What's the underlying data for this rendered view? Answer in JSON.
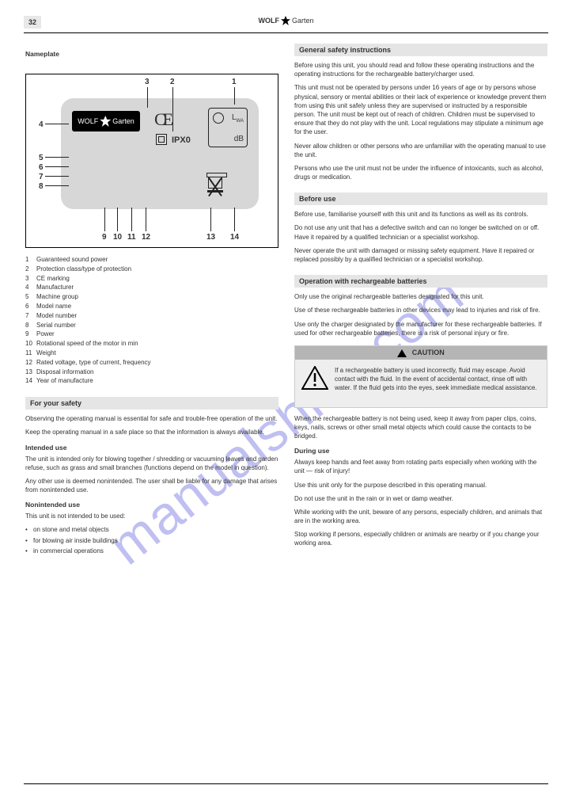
{
  "header": {
    "page_number": "32",
    "brand_wolf": "WOLF",
    "brand_garten": "Garten"
  },
  "left": {
    "diagram_title": "Nameplate",
    "callouts": {
      "n1": "1",
      "n2": "2",
      "n3": "3",
      "n4": "4",
      "n5": "5",
      "n6": "6",
      "n7": "7",
      "n8": "8",
      "n9": "9",
      "n10": "10",
      "n11": "11",
      "n12": "12",
      "n13": "13",
      "n14": "14"
    },
    "np_logo_wolf": "WOLF",
    "np_logo_garten": "Garten",
    "ipx0": "IPX0",
    "lwa": "L",
    "lwa_sub": "WA",
    "db": "dB",
    "list": [
      "Guaranteed sound power",
      "Protection class/type of protection",
      "CE marking",
      "Manufacturer",
      "Machine group",
      "Model name",
      "Model number",
      "Serial number",
      "Power",
      "Rotational speed of the motor in min",
      "Weight",
      "Rated voltage, type of current, frequency",
      "Disposal information",
      "Year of manufacture"
    ],
    "section_bottom_title": "For your safety",
    "para1": "Observing the operating manual is essential for safe and trouble-free operation of the unit.",
    "para2": "Keep the operating manual in a safe place so that the information is always available.",
    "heading_intended": "Intended use",
    "para_intended": "The unit is intended only for blowing together / shredding or vacuuming leaves and garden refuse, such as grass and small branches (functions depend on the model in question).",
    "para_intended2": "Any other use is deemed nonintended. The user shall be liable for any damage that arises from nonintended use.",
    "heading_nonintended": "Nonintended use",
    "nonintended_intro": "This unit is not intended to be used:",
    "nonintended_bullets": [
      "on stone and metal objects",
      "for blowing air inside buildings",
      "in commercial operations"
    ]
  },
  "right": {
    "section1_title": "General safety instructions",
    "para_gen1": "Before using this unit, you should read and follow these operating instructions and the operating instructions for the rechargeable battery/charger used.",
    "para_gen2": "This unit must not be operated by persons under 16 years of age or by persons whose physical, sensory or mental abilities or their lack of experience or knowledge prevent them from using this unit safely unless they are supervised or instructed by a responsible person. The unit must be kept out of reach of children. Children must be supervised to ensure that they do not play with the unit. Local regulations may stipulate a minimum age for the user.",
    "para_gen3": "Never allow children or other persons who are unfamiliar with the operating manual to use the unit.",
    "para_gen4": "Persons who use the unit must not be under the influence of intoxicants, such as alcohol, drugs or medication.",
    "section2_title": "Before use",
    "para_before1": "Before use, familiarise yourself with this unit and its functions as well as its controls.",
    "para_before2": "Do not use any unit that has a defective switch and can no longer be switched on or off. Have it repaired by a qualified technician or a specialist workshop.",
    "para_before3": "Never operate the unit with damaged or missing safety equipment. Have it repaired or replaced possibly by a qualified technician or a specialist workshop.",
    "section3_title": "Operation with rechargeable batteries",
    "para_batt1": "Only use the original rechargeable batteries designated for this unit.",
    "para_batt2": "Use of these rechargeable batteries in other devices may lead to injuries and risk of fire.",
    "para_batt3": "Use only the charger designated by the manufacturer for these rechargeable batteries. If used for other rechargeable batteries, there is a risk of personal injury or fire.",
    "caution_head": "CAUTION",
    "caution_body": "If a rechargeable battery is used incorrectly, fluid may escape. Avoid contact with the fluid. In the event of accidental contact, rinse off with water. If the fluid gets into the eyes, seek immediate medical assistance.",
    "para_batt4": "When the rechargeable battery is not being used, keep it away from paper clips, coins, keys, nails, screws or other small metal objects which could cause the contacts to be bridged.",
    "heading_during": "During use",
    "para_during1": "Always keep hands and feet away from rotating parts especially when working with the unit — risk of injury!",
    "para_during2": "Use this unit only for the purpose described in this operating manual.",
    "para_during3": "Do not use the unit in the rain or in wet or damp weather.",
    "para_during4": "While working with the unit, beware of any persons, especially children, and animals that are in the working area.",
    "para_during5": "Stop working if persons, especially children or animals are nearby or if you change your working area."
  },
  "watermark": "manualshive.com",
  "colors": {
    "bar_bg": "#e5e5e5",
    "caution_bg": "#b5b5b5",
    "watermark_color": "#8b8be8"
  }
}
